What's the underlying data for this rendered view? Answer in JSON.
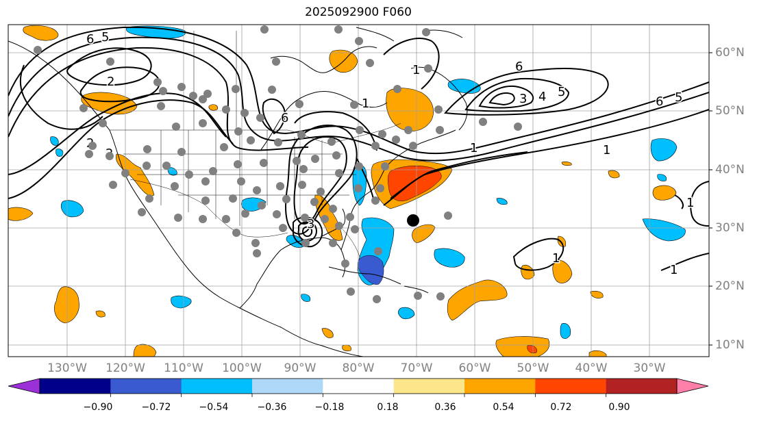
{
  "title": "2025092900 F060",
  "longitude_labels": [
    "130°W",
    "120°W",
    "110°W",
    "100°W",
    "90°W",
    "80°W",
    "70°W",
    "60°W",
    "50°W",
    "40°W",
    "30°W"
  ],
  "latitude_labels": [
    "60°N",
    "50°N",
    "40°N",
    "30°N",
    "20°N",
    "10°N"
  ],
  "colorbar": {
    "ticks": [
      "−0.90",
      "−0.72",
      "−0.54",
      "−0.36",
      "−0.18",
      "0.18",
      "0.36",
      "0.54",
      "0.72",
      "0.90"
    ],
    "colors": [
      "#9b30d9",
      "#00008b",
      "#3a5bd0",
      "#00bfff",
      "#add8f7",
      "#ffffff",
      "#fde68a",
      "#ffa500",
      "#ff4500",
      "#b22222",
      "#ff7fa8"
    ]
  },
  "contour_labels": [
    "6",
    "5",
    "2",
    "2",
    "2",
    "1",
    "3",
    "6",
    "1",
    "6",
    "3",
    "4",
    "5",
    "6",
    "5",
    "1",
    "1",
    "1",
    "1",
    "1"
  ],
  "colors": {
    "frame": "#000000",
    "grid": "#a0a0a0",
    "land_outline": "#000000",
    "station_dot": "#808080",
    "center_marker": "#000000"
  }
}
